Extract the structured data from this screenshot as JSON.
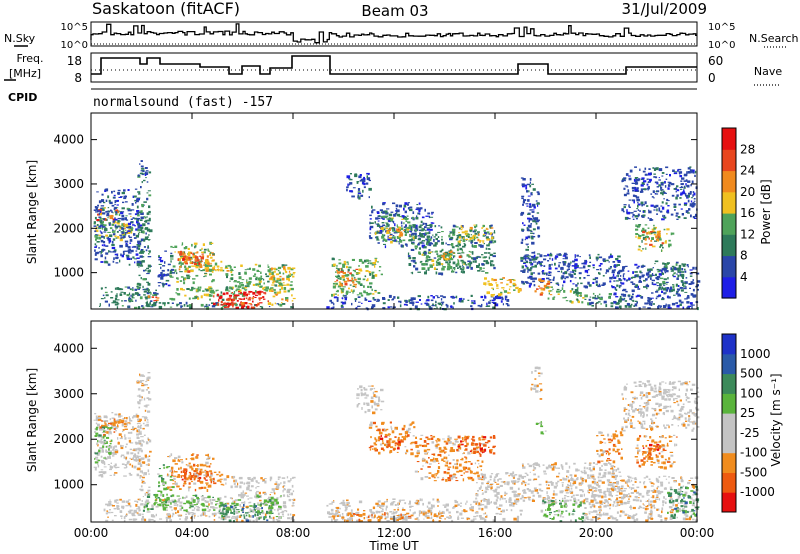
{
  "header": {
    "station": "Saskatoon (fitACF)",
    "beam": "Beam 03",
    "date": "31/Jul/2009"
  },
  "labels": {
    "nsky": "N.Sky",
    "nsearch": "N.Search",
    "freq_line1": "Freq.",
    "freq_line2": "[MHz]",
    "nave": "Nave",
    "cpid": "CPID",
    "cpid_value": "normalsound (fast) -157",
    "x_axis": "Time UT",
    "y_axis": "Slant Range [km]",
    "power_label": "Power [dB]",
    "velocity_label": "Velocity [m s⁻¹]"
  },
  "colors": {
    "power": [
      "#1e1ee6",
      "#2a46a8",
      "#2e7a5a",
      "#4fa35a",
      "#f0c020",
      "#f08a1e",
      "#e8461e",
      "#e61010"
    ],
    "velocity": [
      "#e61010",
      "#ee5a10",
      "#f08c1e",
      "#c4c4c4",
      "#c4c4c4",
      "#5ab43c",
      "#3c8a5a",
      "#2a5aa8",
      "#1e32c8"
    ]
  },
  "chart_data": [
    {
      "type": "line",
      "panel": "noise",
      "left_axis_ticks": [
        "10^5",
        "10^0"
      ],
      "right_axis_ticks": [
        "10^5",
        "10^0"
      ],
      "series": [
        {
          "name": "N.Sky"
        },
        {
          "name": "N.Search"
        }
      ]
    },
    {
      "type": "line",
      "panel": "frequency-nave",
      "left_axis_ticks": [
        "18",
        "8"
      ],
      "right_axis_ticks": [
        "60",
        "0"
      ],
      "series": [
        {
          "name": "Freq."
        },
        {
          "name": "Nave"
        }
      ]
    },
    {
      "type": "heatmap",
      "panel": "power",
      "x_ticks": [
        "00:00",
        "04:00",
        "08:00",
        "12:00",
        "16:00",
        "20:00",
        "00:00"
      ],
      "xlim": [
        0,
        24
      ],
      "y_ticks": [
        1000,
        2000,
        3000,
        4000
      ],
      "ylim": [
        180,
        4600
      ],
      "colorbar_ticks": [
        "4",
        "8",
        "12",
        "16",
        "20",
        "24",
        "28"
      ],
      "regions": [
        {
          "x0": 0.1,
          "x1": 1.6,
          "y0": 1750,
          "y1": 2500,
          "c": 3
        },
        {
          "x0": 0.2,
          "x1": 1.0,
          "y0": 2200,
          "y1": 2450,
          "c": 6
        },
        {
          "x0": 0.6,
          "x1": 1.5,
          "y0": 1900,
          "y1": 2150,
          "c": 4
        },
        {
          "x0": 0.1,
          "x1": 2.0,
          "y0": 1200,
          "y1": 2900,
          "c": 1
        },
        {
          "x0": 0.3,
          "x1": 2.6,
          "y0": 220,
          "y1": 700,
          "c": 2
        },
        {
          "x0": 1.8,
          "x1": 2.3,
          "y0": 300,
          "y1": 3400,
          "c": 2
        },
        {
          "x0": 2.2,
          "x1": 2.6,
          "y0": 320,
          "y1": 500,
          "c": 6
        },
        {
          "x0": 2.6,
          "x1": 3.2,
          "y0": 700,
          "y1": 1500,
          "c": 1
        },
        {
          "x0": 3.1,
          "x1": 4.8,
          "y0": 800,
          "y1": 1700,
          "c": 3
        },
        {
          "x0": 3.4,
          "x1": 4.8,
          "y0": 1050,
          "y1": 1500,
          "c": 5
        },
        {
          "x0": 3.6,
          "x1": 4.3,
          "y0": 1200,
          "y1": 1450,
          "c": 6
        },
        {
          "x0": 4.5,
          "x1": 5.4,
          "y0": 1000,
          "y1": 1300,
          "c": 4
        },
        {
          "x0": 2.0,
          "x1": 8.0,
          "y0": 220,
          "y1": 350,
          "c": 2
        },
        {
          "x0": 3.0,
          "x1": 6.0,
          "y0": 400,
          "y1": 700,
          "c": 3
        },
        {
          "x0": 4.8,
          "x1": 7.0,
          "y0": 220,
          "y1": 600,
          "c": 7
        },
        {
          "x0": 5.0,
          "x1": 6.6,
          "y0": 250,
          "y1": 500,
          "c": 6
        },
        {
          "x0": 5.3,
          "x1": 8.0,
          "y0": 600,
          "y1": 1200,
          "c": 3
        },
        {
          "x0": 7.0,
          "x1": 8.0,
          "y0": 300,
          "y1": 1150,
          "c": 4
        },
        {
          "x0": 1.8,
          "x1": 2.2,
          "y0": 3200,
          "y1": 3550,
          "c": 1
        },
        {
          "x0": 9.3,
          "x1": 16.5,
          "y0": 200,
          "y1": 500,
          "c": 1
        },
        {
          "x0": 9.5,
          "x1": 11.5,
          "y0": 500,
          "y1": 1350,
          "c": 3
        },
        {
          "x0": 9.6,
          "x1": 10.5,
          "y0": 700,
          "y1": 1100,
          "c": 5
        },
        {
          "x0": 10.0,
          "x1": 11.0,
          "y0": 2700,
          "y1": 3250,
          "c": 1
        },
        {
          "x0": 11.0,
          "x1": 13.5,
          "y0": 1600,
          "y1": 2600,
          "c": 1
        },
        {
          "x0": 11.2,
          "x1": 12.8,
          "y0": 1700,
          "y1": 2300,
          "c": 3
        },
        {
          "x0": 11.6,
          "x1": 12.4,
          "y0": 1800,
          "y1": 2050,
          "c": 5
        },
        {
          "x0": 12.5,
          "x1": 16.0,
          "y0": 1000,
          "y1": 2100,
          "c": 2
        },
        {
          "x0": 13.0,
          "x1": 15.0,
          "y0": 1100,
          "y1": 1500,
          "c": 3
        },
        {
          "x0": 13.8,
          "x1": 14.6,
          "y0": 1300,
          "y1": 1500,
          "c": 5
        },
        {
          "x0": 14.5,
          "x1": 16.0,
          "y0": 1700,
          "y1": 2100,
          "c": 4
        },
        {
          "x0": 15.5,
          "x1": 17.0,
          "y0": 500,
          "y1": 900,
          "c": 4
        },
        {
          "x0": 17.0,
          "x1": 21.0,
          "y0": 700,
          "y1": 1450,
          "c": 1
        },
        {
          "x0": 17.0,
          "x1": 17.7,
          "y0": 1000,
          "y1": 3200,
          "c": 1
        },
        {
          "x0": 17.5,
          "x1": 18.2,
          "y0": 500,
          "y1": 900,
          "c": 5
        },
        {
          "x0": 18.0,
          "x1": 19.5,
          "y0": 350,
          "y1": 700,
          "c": 3
        },
        {
          "x0": 19.5,
          "x1": 21.5,
          "y0": 250,
          "y1": 550,
          "c": 2
        },
        {
          "x0": 20.5,
          "x1": 24.0,
          "y0": 220,
          "y1": 1200,
          "c": 1
        },
        {
          "x0": 21.5,
          "x1": 23.0,
          "y0": 1500,
          "y1": 2100,
          "c": 3
        },
        {
          "x0": 21.8,
          "x1": 22.6,
          "y0": 1650,
          "y1": 1950,
          "c": 5
        },
        {
          "x0": 21.0,
          "x1": 24.0,
          "y0": 2200,
          "y1": 3400,
          "c": 1
        },
        {
          "x0": 22.3,
          "x1": 23.5,
          "y0": 600,
          "y1": 1300,
          "c": 2
        }
      ]
    },
    {
      "type": "heatmap",
      "panel": "velocity",
      "x_ticks": [
        "00:00",
        "04:00",
        "08:00",
        "12:00",
        "16:00",
        "20:00",
        "00:00"
      ],
      "xlim": [
        0,
        24
      ],
      "y_ticks": [
        1000,
        2000,
        3000,
        4000
      ],
      "ylim": [
        180,
        4600
      ],
      "colorbar_ticks": [
        "1000",
        "500",
        "100",
        "25",
        "-25",
        "-100",
        "-500",
        "-1000"
      ],
      "regions": [
        {
          "x0": 0.1,
          "x1": 2.0,
          "y0": 1200,
          "y1": 2600,
          "c": 3
        },
        {
          "x0": 0.2,
          "x1": 1.4,
          "y0": 2100,
          "y1": 2500,
          "c": 2
        },
        {
          "x0": 0.1,
          "x1": 0.8,
          "y0": 1500,
          "y1": 2300,
          "c": 5
        },
        {
          "x0": 1.8,
          "x1": 2.3,
          "y0": 400,
          "y1": 3500,
          "c": 3
        },
        {
          "x0": 2.6,
          "x1": 3.2,
          "y0": 600,
          "y1": 1500,
          "c": 5
        },
        {
          "x0": 3.0,
          "x1": 4.8,
          "y0": 900,
          "y1": 1700,
          "c": 2
        },
        {
          "x0": 3.5,
          "x1": 4.6,
          "y0": 1050,
          "y1": 1450,
          "c": 1
        },
        {
          "x0": 4.6,
          "x1": 5.4,
          "y0": 1000,
          "y1": 1300,
          "c": 2
        },
        {
          "x0": 0.5,
          "x1": 8.0,
          "y0": 220,
          "y1": 700,
          "c": 3
        },
        {
          "x0": 2.0,
          "x1": 6.0,
          "y0": 450,
          "y1": 800,
          "c": 5
        },
        {
          "x0": 5.0,
          "x1": 7.2,
          "y0": 220,
          "y1": 600,
          "c": 6
        },
        {
          "x0": 5.5,
          "x1": 8.0,
          "y0": 700,
          "y1": 1200,
          "c": 3
        },
        {
          "x0": 6.5,
          "x1": 7.5,
          "y0": 300,
          "y1": 800,
          "c": 5
        },
        {
          "x0": 9.3,
          "x1": 17.0,
          "y0": 220,
          "y1": 700,
          "c": 3
        },
        {
          "x0": 9.5,
          "x1": 14.0,
          "y0": 220,
          "y1": 400,
          "c": 2
        },
        {
          "x0": 10.5,
          "x1": 11.5,
          "y0": 2600,
          "y1": 3200,
          "c": 3
        },
        {
          "x0": 11.0,
          "x1": 12.8,
          "y0": 1700,
          "y1": 2400,
          "c": 2
        },
        {
          "x0": 11.4,
          "x1": 12.2,
          "y0": 1800,
          "y1": 2100,
          "c": 1
        },
        {
          "x0": 12.8,
          "x1": 15.5,
          "y0": 1100,
          "y1": 2100,
          "c": 2
        },
        {
          "x0": 14.5,
          "x1": 16.0,
          "y0": 1700,
          "y1": 2100,
          "c": 1
        },
        {
          "x0": 15.2,
          "x1": 17.2,
          "y0": 600,
          "y1": 1300,
          "c": 3
        },
        {
          "x0": 17.0,
          "x1": 21.0,
          "y0": 600,
          "y1": 1500,
          "c": 3
        },
        {
          "x0": 17.4,
          "x1": 17.8,
          "y0": 2900,
          "y1": 3600,
          "c": 3
        },
        {
          "x0": 17.6,
          "x1": 18.0,
          "y0": 2100,
          "y1": 2400,
          "c": 5
        },
        {
          "x0": 17.8,
          "x1": 19.5,
          "y0": 220,
          "y1": 700,
          "c": 5
        },
        {
          "x0": 19.5,
          "x1": 24.0,
          "y0": 220,
          "y1": 1200,
          "c": 3
        },
        {
          "x0": 20.0,
          "x1": 21.0,
          "y0": 1500,
          "y1": 2200,
          "c": 2
        },
        {
          "x0": 21.5,
          "x1": 23.2,
          "y0": 1400,
          "y1": 2100,
          "c": 2
        },
        {
          "x0": 21.7,
          "x1": 22.5,
          "y0": 1600,
          "y1": 1900,
          "c": 1
        },
        {
          "x0": 21.0,
          "x1": 24.0,
          "y0": 2200,
          "y1": 3300,
          "c": 3
        },
        {
          "x0": 22.8,
          "x1": 24.0,
          "y0": 300,
          "y1": 1000,
          "c": 6
        }
      ]
    }
  ]
}
